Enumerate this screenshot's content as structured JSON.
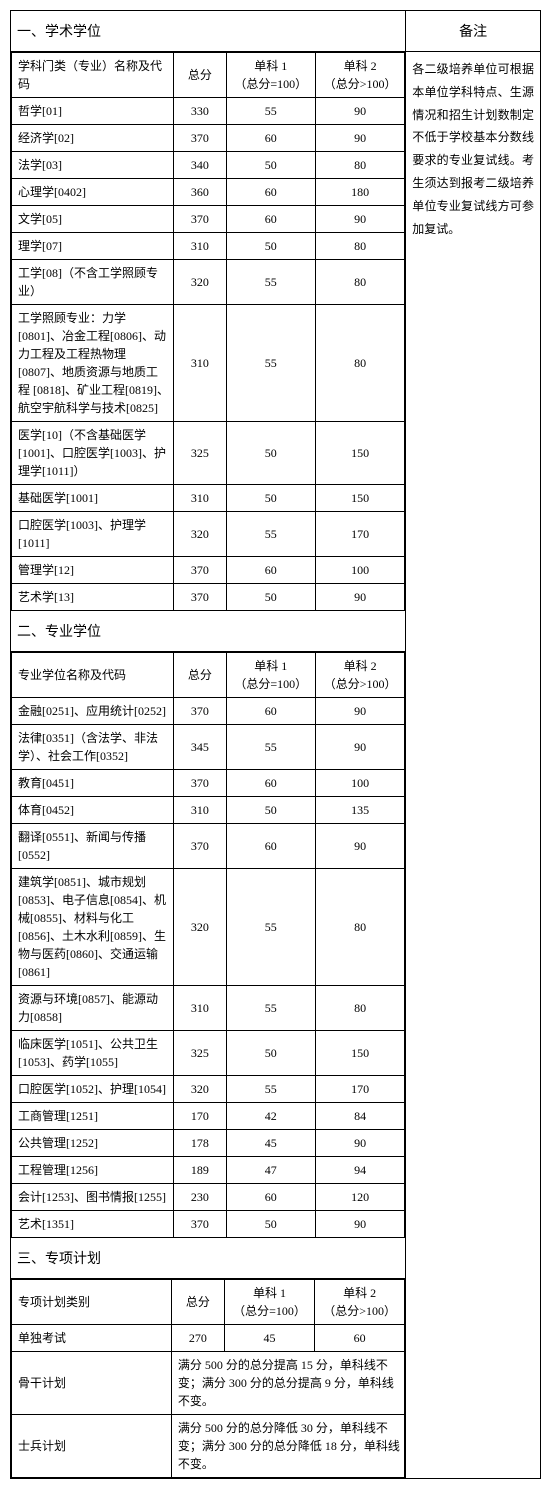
{
  "remarks": {
    "header": "备注",
    "body": "各二级培养单位可根据本单位学科特点、生源情况和招生计划数制定不低于学校基本分数线要求的专业复试线。考生须达到报考二级培养单位专业复试线方可参加复试。"
  },
  "headers": {
    "name_academic": "学科门类（专业）名称及代码",
    "name_prof": "专业学位名称及代码",
    "name_special": "专项计划类别",
    "total": "总分",
    "s1": "单科 1\n（总分=100）",
    "s2": "单科 2\n（总分>100）"
  },
  "section1": {
    "title": "一、学术学位",
    "rows": [
      {
        "name": "哲学[01]",
        "total": "330",
        "s1": "55",
        "s2": "90"
      },
      {
        "name": "经济学[02]",
        "total": "370",
        "s1": "60",
        "s2": "90"
      },
      {
        "name": "法学[03]",
        "total": "340",
        "s1": "50",
        "s2": "80"
      },
      {
        "name": "心理学[0402]",
        "total": "360",
        "s1": "60",
        "s2": "180"
      },
      {
        "name": "文学[05]",
        "total": "370",
        "s1": "60",
        "s2": "90"
      },
      {
        "name": "理学[07]",
        "total": "310",
        "s1": "50",
        "s2": "80"
      },
      {
        "name": "工学[08]（不含工学照顾专业）",
        "total": "320",
        "s1": "55",
        "s2": "80"
      },
      {
        "name": "工学照顾专业：力学[0801]、冶金工程[0806]、动力工程及工程热物理[0807]、地质资源与地质工程 [0818]、矿业工程[0819]、航空宇航科学与技术[0825]",
        "total": "310",
        "s1": "55",
        "s2": "80"
      },
      {
        "name": "医学[10]（不含基础医学[1001]、口腔医学[1003]、护理学[1011]）",
        "total": "325",
        "s1": "50",
        "s2": "150"
      },
      {
        "name": "基础医学[1001]",
        "total": "310",
        "s1": "50",
        "s2": "150"
      },
      {
        "name": "口腔医学[1003]、护理学[1011]",
        "total": "320",
        "s1": "55",
        "s2": "170"
      },
      {
        "name": "管理学[12]",
        "total": "370",
        "s1": "60",
        "s2": "100"
      },
      {
        "name": "艺术学[13]",
        "total": "370",
        "s1": "50",
        "s2": "90"
      }
    ]
  },
  "section2": {
    "title": "二、专业学位",
    "rows": [
      {
        "name": "金融[0251]、应用统计[0252]",
        "total": "370",
        "s1": "60",
        "s2": "90"
      },
      {
        "name": "法律[0351]（含法学、非法学）、社会工作[0352]",
        "total": "345",
        "s1": "55",
        "s2": "90"
      },
      {
        "name": "教育[0451]",
        "total": "370",
        "s1": "60",
        "s2": "100"
      },
      {
        "name": "体育[0452]",
        "total": "310",
        "s1": "50",
        "s2": "135"
      },
      {
        "name": "翻译[0551]、新闻与传播[0552]",
        "total": "370",
        "s1": "60",
        "s2": "90"
      },
      {
        "name": "建筑学[0851]、城市规划[0853]、电子信息[0854]、机械[0855]、材料与化工[0856]、土木水利[0859]、生物与医药[0860]、交通运输[0861]",
        "total": "320",
        "s1": "55",
        "s2": "80"
      },
      {
        "name": "资源与环境[0857]、能源动力[0858]",
        "total": "310",
        "s1": "55",
        "s2": "80"
      },
      {
        "name": "临床医学[1051]、公共卫生[1053]、药学[1055]",
        "total": "325",
        "s1": "50",
        "s2": "150"
      },
      {
        "name": "口腔医学[1052]、护理[1054]",
        "total": "320",
        "s1": "55",
        "s2": "170"
      },
      {
        "name": "工商管理[1251]",
        "total": "170",
        "s1": "42",
        "s2": "84"
      },
      {
        "name": "公共管理[1252]",
        "total": "178",
        "s1": "45",
        "s2": "90"
      },
      {
        "name": "工程管理[1256]",
        "total": "189",
        "s1": "47",
        "s2": "94"
      },
      {
        "name": "会计[1253]、图书情报[1255]",
        "total": "230",
        "s1": "60",
        "s2": "120"
      },
      {
        "name": "艺术[1351]",
        "total": "370",
        "s1": "50",
        "s2": "90"
      }
    ]
  },
  "section3": {
    "title": "三、专项计划",
    "rows": [
      {
        "name": "单独考试",
        "total": "270",
        "s1": "45",
        "s2": "60"
      },
      {
        "name": "骨干计划",
        "note": "满分 500 分的总分提高 15 分，单科线不变；满分 300 分的总分提高 9 分，单科线不变。"
      },
      {
        "name": "士兵计划",
        "note": "满分 500 分的总分降低 30 分，单科线不变；满分 300 分的总分降低 18 分，单科线不变。"
      }
    ]
  }
}
